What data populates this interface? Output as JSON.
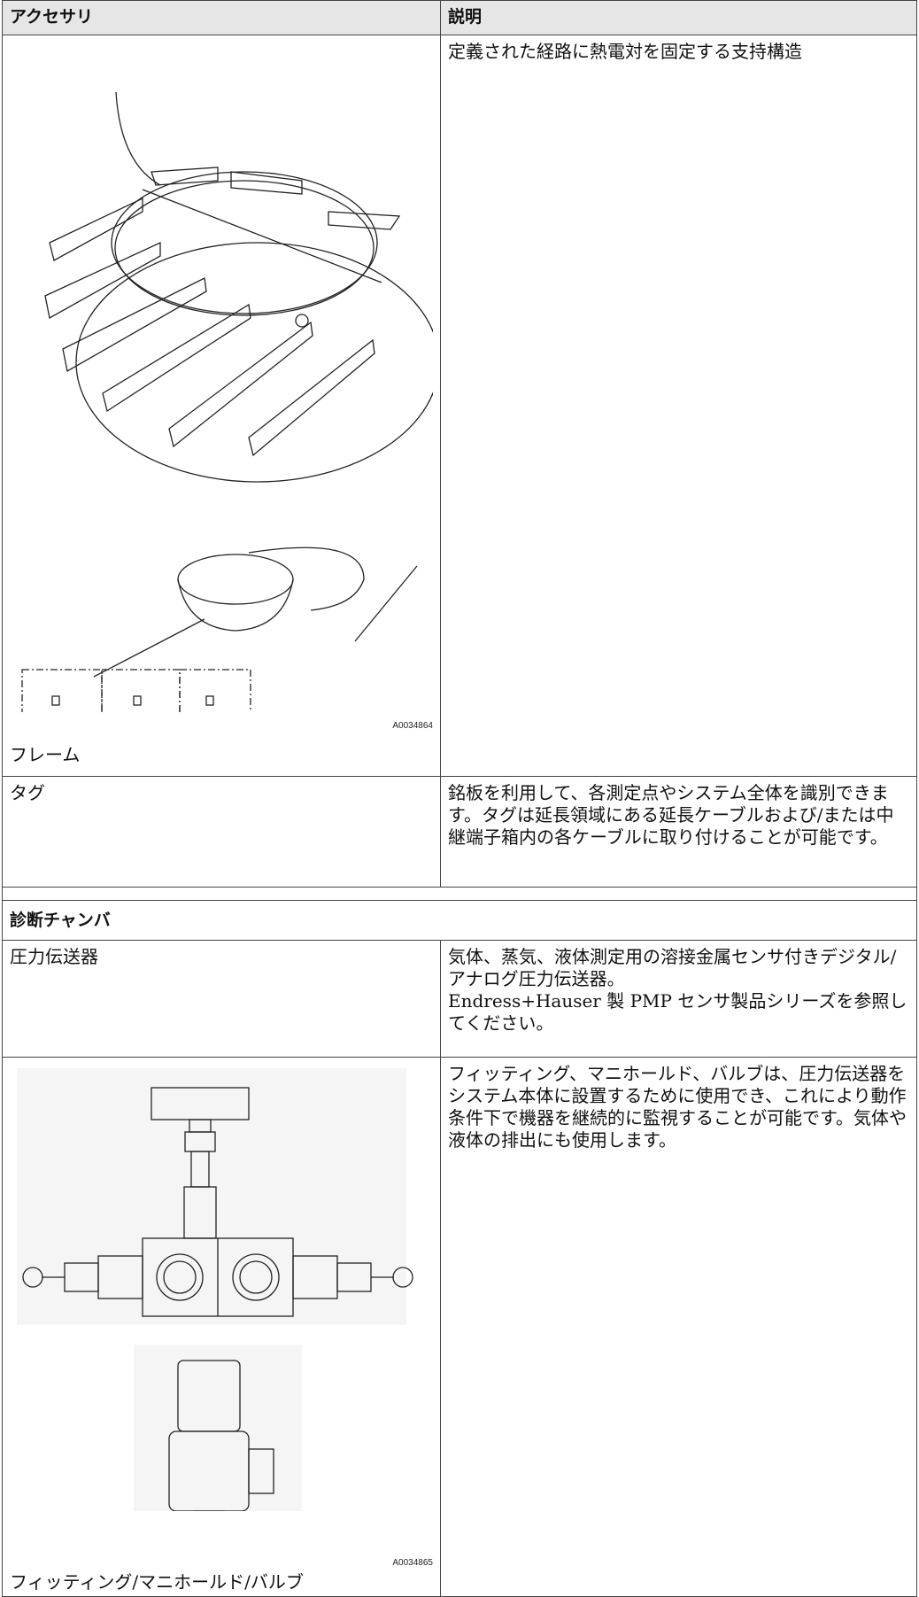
{
  "table": {
    "headers": [
      "アクセサリ",
      "説明"
    ],
    "rows": [
      {
        "name": "フレーム",
        "figure_id": "A0034864",
        "description": "定義された経路に熱電対を固定する支持構造"
      },
      {
        "name": "タグ",
        "description": "銘板を利用して、各測定点やシステム全体を識別できます。タグは延長領域にある延長ケーブルおよび/または中継端子箱内の各ケーブルに取り付けることが可能です。"
      }
    ]
  },
  "section": {
    "title": "診断チャンバ",
    "rows": [
      {
        "name": "圧力伝送器",
        "description": [
          "気体、蒸気、液体測定用の溶接金属センサ付きデジタル/アナログ圧力伝送器。",
          "Endress+Hauser 製 PMP センサ製品シリーズを参照してください。"
        ]
      },
      {
        "name": "フィッティング/マニホールド/バルブ",
        "figure_id": "A0034865",
        "description": "フィッティング、マニホールド、バルブは、圧力伝送器をシステム本体に設置するために使用でき、これにより動作条件下で機器を継続的に監視することが可能です。気体や液体の排出にも使用します。"
      }
    ]
  }
}
